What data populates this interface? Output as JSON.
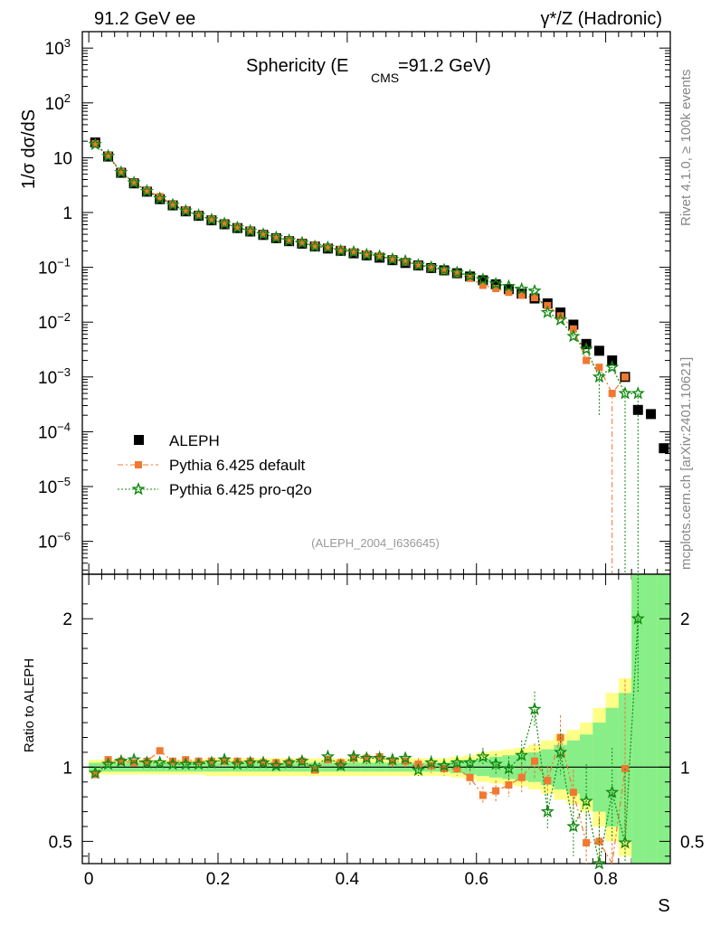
{
  "header": {
    "left": "91.2 GeV ee",
    "right": "γ*/Z (Hadronic)"
  },
  "side": {
    "rivet": "Rivet 4.1.0, ≥ 100k events",
    "mcplots": "mcplots.cern.ch [arXiv:2401.10621]"
  },
  "chart_data": {
    "type": "scatter",
    "title_main": "Sphericity (E",
    "title_sub": "CMS",
    "title_end": "=91.2 GeV)",
    "ylabel": "1/σ  dσ/dS",
    "ratio_ylabel": "Ratio to ALEPH",
    "xlabel": "S",
    "analysis_id": "(ALEPH_2004_I636645)",
    "xlim": [
      -0.01,
      0.9
    ],
    "ylim_log": [
      -6.6,
      3.3
    ],
    "ratio_ylim": [
      0.35,
      2.3
    ],
    "x_ticks": [
      "0",
      "0.2",
      "0.4",
      "0.6",
      "0.8"
    ],
    "x_tick_values": [
      0,
      0.2,
      0.4,
      0.6,
      0.8
    ],
    "y_ticks": [
      {
        "v": 3,
        "base": "10",
        "exp": "3"
      },
      {
        "v": 2,
        "base": "10",
        "exp": "2"
      },
      {
        "v": 1,
        "base": "10",
        "exp": ""
      },
      {
        "v": 0,
        "base": "1",
        "exp": ""
      },
      {
        "v": -1,
        "base": "10",
        "exp": "−1"
      },
      {
        "v": -2,
        "base": "10",
        "exp": "−2"
      },
      {
        "v": -3,
        "base": "10",
        "exp": "−3"
      },
      {
        "v": -4,
        "base": "10",
        "exp": "−4"
      },
      {
        "v": -5,
        "base": "10",
        "exp": "−5"
      },
      {
        "v": -6,
        "base": "10",
        "exp": "−6"
      }
    ],
    "ratio_ticks": [
      {
        "v": 0.5,
        "label": "0.5"
      },
      {
        "v": 1,
        "label": "1"
      },
      {
        "v": 2,
        "label": "2"
      }
    ],
    "legend": [
      {
        "name": "ALEPH"
      },
      {
        "name": "Pythia 6.425 default"
      },
      {
        "name": "Pythia 6.425 pro-q2o"
      }
    ],
    "colors": {
      "data": "#000000",
      "default": "#f07830",
      "proq2o": "#118811",
      "band_yellow": "#ffff88",
      "band_green": "#88ee88"
    },
    "x": [
      0.01,
      0.03,
      0.05,
      0.07,
      0.09,
      0.11,
      0.13,
      0.15,
      0.17,
      0.19,
      0.21,
      0.23,
      0.25,
      0.27,
      0.29,
      0.31,
      0.33,
      0.35,
      0.37,
      0.39,
      0.41,
      0.43,
      0.45,
      0.47,
      0.49,
      0.51,
      0.53,
      0.55,
      0.57,
      0.59,
      0.61,
      0.63,
      0.65,
      0.67,
      0.69,
      0.71,
      0.73,
      0.75,
      0.77,
      0.79,
      0.81,
      0.83,
      0.85,
      0.87,
      0.89
    ],
    "series": [
      {
        "name": "ALEPH",
        "values": [
          19,
          10.5,
          5.3,
          3.4,
          2.4,
          1.75,
          1.35,
          1.05,
          0.87,
          0.72,
          0.61,
          0.52,
          0.45,
          0.39,
          0.34,
          0.3,
          0.27,
          0.24,
          0.22,
          0.2,
          0.18,
          0.165,
          0.15,
          0.135,
          0.12,
          0.108,
          0.097,
          0.088,
          0.078,
          0.068,
          0.058,
          0.049,
          0.04,
          0.033,
          0.027,
          0.022,
          0.015,
          0.009,
          0.004,
          0.003,
          0.002,
          0.001,
          0.00025,
          0.00021,
          5e-05
        ]
      },
      {
        "name": "Pythia 6.425 default",
        "values": [
          18,
          11,
          5.5,
          3.5,
          2.5,
          1.95,
          1.4,
          1.1,
          0.9,
          0.75,
          0.63,
          0.54,
          0.47,
          0.4,
          0.35,
          0.31,
          0.28,
          0.25,
          0.23,
          0.21,
          0.19,
          0.175,
          0.16,
          0.14,
          0.125,
          0.11,
          0.098,
          0.087,
          0.077,
          0.063,
          0.047,
          0.041,
          0.035,
          0.031,
          0.028,
          0.02,
          0.013,
          0.0075,
          0.002,
          0.0015,
          0.0005,
          0.001
        ],
        "ratio": [
          0.95,
          1.05,
          1.04,
          1.03,
          1.04,
          1.11,
          1.04,
          1.05,
          1.04,
          1.04,
          1.04,
          1.04,
          1.04,
          1.03,
          1.03,
          1.03,
          1.04,
          0.98,
          1.05,
          1.03,
          1.06,
          1.06,
          1.07,
          1.04,
          1.04,
          1.02,
          1.01,
          0.99,
          0.99,
          0.93,
          0.81,
          0.84,
          0.88,
          0.93,
          1.04,
          0.91,
          1.2,
          0.83,
          0.49,
          0.5,
          0.25,
          0.99
        ]
      },
      {
        "name": "Pythia 6.425 pro-q2o",
        "values": [
          17.5,
          10.7,
          5.4,
          3.5,
          2.45,
          1.8,
          1.38,
          1.07,
          0.89,
          0.74,
          0.63,
          0.53,
          0.46,
          0.4,
          0.35,
          0.31,
          0.28,
          0.24,
          0.23,
          0.2,
          0.19,
          0.17,
          0.16,
          0.14,
          0.13,
          0.11,
          0.1,
          0.09,
          0.08,
          0.07,
          0.06,
          0.05,
          0.045,
          0.04,
          0.037,
          0.015,
          0.011,
          0.0055,
          0.0032,
          0.001,
          0.0015,
          0.0005,
          0.0005
        ],
        "ratio": [
          0.96,
          1.02,
          1.04,
          1.05,
          1.03,
          1.03,
          1.02,
          1.02,
          1.02,
          1.03,
          1.05,
          1.02,
          1.03,
          1.03,
          1.01,
          1.03,
          1.04,
          1.0,
          1.07,
          1.01,
          1.07,
          1.06,
          1.06,
          1.05,
          1.06,
          0.98,
          1.03,
          1.01,
          1.03,
          1.03,
          1.07,
          1.02,
          0.99,
          1.08,
          1.39,
          0.7,
          1.1,
          0.6,
          0.77,
          0.35,
          0.83,
          0.49,
          2.0
        ]
      }
    ],
    "ratio_errors_default": [
      0.02,
      0.02,
      0.02,
      0.02,
      0.02,
      0.02,
      0.02,
      0.02,
      0.02,
      0.02,
      0.02,
      0.02,
      0.02,
      0.02,
      0.02,
      0.02,
      0.02,
      0.03,
      0.03,
      0.03,
      0.04,
      0.04,
      0.04,
      0.04,
      0.04,
      0.04,
      0.05,
      0.05,
      0.05,
      0.06,
      0.06,
      0.07,
      0.08,
      0.1,
      0.12,
      0.1,
      0.15,
      0.15,
      0.2,
      0.2,
      0.3,
      0.6
    ],
    "ratio_errors_proq2o": [
      0.02,
      0.02,
      0.02,
      0.02,
      0.02,
      0.02,
      0.02,
      0.02,
      0.02,
      0.02,
      0.02,
      0.02,
      0.02,
      0.02,
      0.02,
      0.02,
      0.03,
      0.03,
      0.03,
      0.03,
      0.04,
      0.04,
      0.04,
      0.04,
      0.04,
      0.04,
      0.05,
      0.05,
      0.05,
      0.06,
      0.06,
      0.07,
      0.08,
      0.1,
      0.12,
      0.12,
      0.15,
      0.2,
      0.25,
      0.3,
      0.3,
      0.5,
      0.5
    ],
    "band_x_edges": [
      0,
      0.02,
      0.04,
      0.06,
      0.08,
      0.1,
      0.12,
      0.14,
      0.16,
      0.18,
      0.2,
      0.22,
      0.24,
      0.26,
      0.28,
      0.3,
      0.32,
      0.34,
      0.36,
      0.38,
      0.4,
      0.42,
      0.44,
      0.46,
      0.48,
      0.5,
      0.52,
      0.54,
      0.56,
      0.58,
      0.6,
      0.62,
      0.64,
      0.66,
      0.68,
      0.7,
      0.72,
      0.74,
      0.76,
      0.78,
      0.8,
      0.82,
      0.84,
      0.86,
      0.88,
      0.9
    ],
    "band_yellow_halfwidth": [
      0.05,
      0.05,
      0.05,
      0.05,
      0.05,
      0.05,
      0.05,
      0.05,
      0.05,
      0.06,
      0.06,
      0.06,
      0.06,
      0.06,
      0.06,
      0.06,
      0.06,
      0.06,
      0.06,
      0.06,
      0.06,
      0.06,
      0.06,
      0.06,
      0.06,
      0.06,
      0.06,
      0.06,
      0.07,
      0.08,
      0.1,
      0.11,
      0.12,
      0.13,
      0.15,
      0.18,
      0.22,
      0.25,
      0.3,
      0.4,
      0.5,
      0.6,
      1.5,
      1.5,
      1.5
    ],
    "band_green_halfwidth": [
      0.03,
      0.03,
      0.03,
      0.03,
      0.03,
      0.03,
      0.03,
      0.03,
      0.03,
      0.03,
      0.03,
      0.03,
      0.03,
      0.03,
      0.03,
      0.03,
      0.03,
      0.03,
      0.03,
      0.03,
      0.03,
      0.03,
      0.03,
      0.03,
      0.03,
      0.03,
      0.03,
      0.03,
      0.04,
      0.05,
      0.06,
      0.07,
      0.08,
      0.09,
      0.1,
      0.12,
      0.15,
      0.18,
      0.22,
      0.3,
      0.4,
      0.5,
      1.5,
      1.5,
      1.5
    ]
  }
}
